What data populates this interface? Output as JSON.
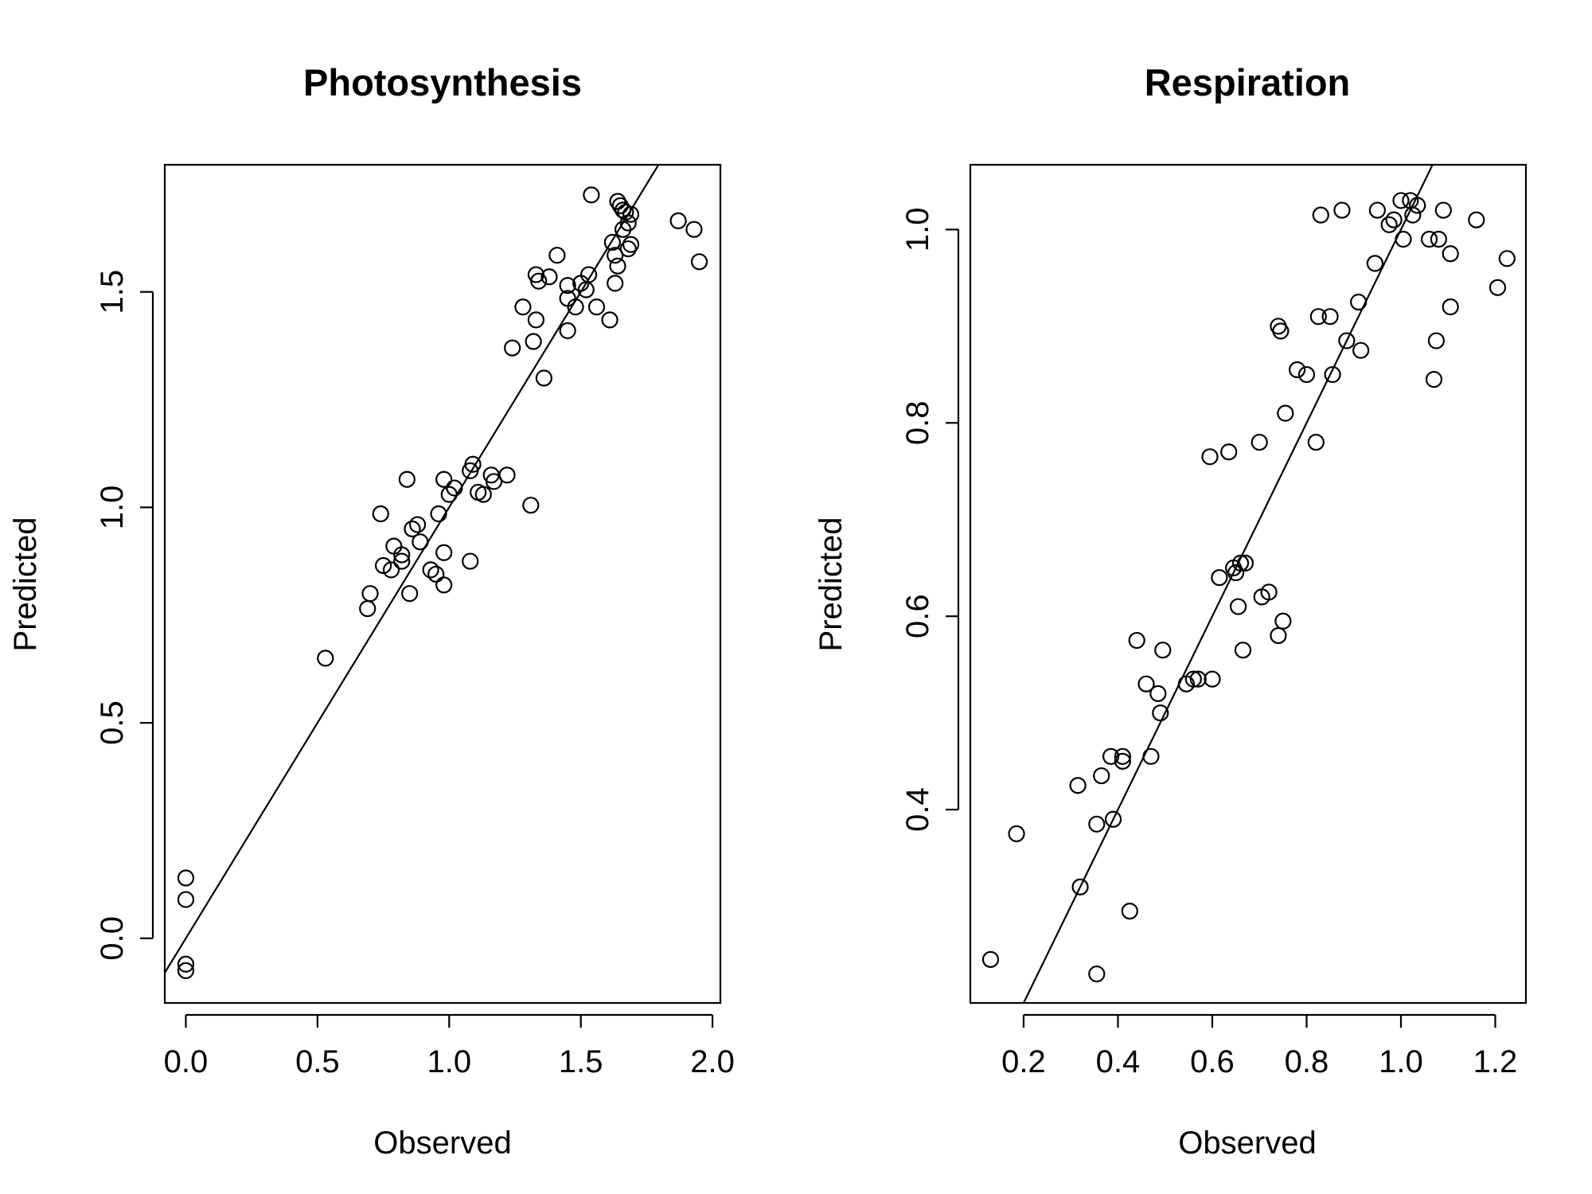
{
  "chart_data": [
    {
      "type": "scatter",
      "title": "Photosynthesis",
      "xlabel": "Observed",
      "ylabel": "Predicted",
      "xlim": [
        -0.08,
        2.03
      ],
      "ylim": [
        -0.15,
        1.795
      ],
      "x_ticks": [
        0,
        0.5,
        1,
        1.5,
        2
      ],
      "x_tick_labels": [
        "0.0",
        "0.5",
        "1.0",
        "1.5",
        "2.0"
      ],
      "y_ticks": [
        0,
        0.5,
        1,
        1.5
      ],
      "y_tick_labels": [
        "0.0",
        "0.5",
        "1.0",
        "1.5"
      ],
      "reference_line": {
        "intercept": 0.0,
        "slope": 1.0
      },
      "marker": "open-circle",
      "grid": false,
      "points": [
        [
          0.0,
          0.14
        ],
        [
          0.0,
          0.09
        ],
        [
          0.0,
          -0.06
        ],
        [
          0.0,
          -0.075
        ],
        [
          0.53,
          0.65
        ],
        [
          0.69,
          0.765
        ],
        [
          0.7,
          0.8
        ],
        [
          0.74,
          0.985
        ],
        [
          0.75,
          0.865
        ],
        [
          0.78,
          0.855
        ],
        [
          0.79,
          0.91
        ],
        [
          0.82,
          0.875
        ],
        [
          0.82,
          0.89
        ],
        [
          0.84,
          1.065
        ],
        [
          0.85,
          0.8
        ],
        [
          0.86,
          0.95
        ],
        [
          0.88,
          0.96
        ],
        [
          0.89,
          0.92
        ],
        [
          0.93,
          0.855
        ],
        [
          0.95,
          0.845
        ],
        [
          0.96,
          0.985
        ],
        [
          0.98,
          0.82
        ],
        [
          0.98,
          0.895
        ],
        [
          0.98,
          1.065
        ],
        [
          1.0,
          1.03
        ],
        [
          1.02,
          1.045
        ],
        [
          1.08,
          0.875
        ],
        [
          1.08,
          1.085
        ],
        [
          1.09,
          1.1
        ],
        [
          1.11,
          1.035
        ],
        [
          1.13,
          1.03
        ],
        [
          1.16,
          1.075
        ],
        [
          1.17,
          1.06
        ],
        [
          1.22,
          1.075
        ],
        [
          1.24,
          1.37
        ],
        [
          1.28,
          1.465
        ],
        [
          1.31,
          1.005
        ],
        [
          1.32,
          1.385
        ],
        [
          1.33,
          1.54
        ],
        [
          1.33,
          1.435
        ],
        [
          1.34,
          1.525
        ],
        [
          1.36,
          1.3
        ],
        [
          1.38,
          1.535
        ],
        [
          1.41,
          1.585
        ],
        [
          1.45,
          1.515
        ],
        [
          1.45,
          1.485
        ],
        [
          1.45,
          1.41
        ],
        [
          1.48,
          1.465
        ],
        [
          1.5,
          1.52
        ],
        [
          1.52,
          1.505
        ],
        [
          1.53,
          1.54
        ],
        [
          1.54,
          1.725
        ],
        [
          1.56,
          1.465
        ],
        [
          1.61,
          1.435
        ],
        [
          1.62,
          1.615
        ],
        [
          1.63,
          1.585
        ],
        [
          1.63,
          1.52
        ],
        [
          1.64,
          1.56
        ],
        [
          1.64,
          1.71
        ],
        [
          1.65,
          1.7
        ],
        [
          1.66,
          1.69
        ],
        [
          1.66,
          1.645
        ],
        [
          1.67,
          1.685
        ],
        [
          1.68,
          1.66
        ],
        [
          1.68,
          1.6
        ],
        [
          1.69,
          1.61
        ],
        [
          1.69,
          1.68
        ],
        [
          1.87,
          1.665
        ],
        [
          1.93,
          1.645
        ],
        [
          1.95,
          1.57
        ]
      ]
    },
    {
      "type": "scatter",
      "title": "Respiration",
      "xlabel": "Observed",
      "ylabel": "Predicted",
      "xlim": [
        0.087,
        1.265
      ],
      "ylim": [
        0.2,
        1.067
      ],
      "x_ticks": [
        0.2,
        0.4,
        0.6,
        0.8,
        1.0,
        1.2
      ],
      "x_tick_labels": [
        "0.2",
        "0.4",
        "0.6",
        "0.8",
        "1.0",
        "1.2"
      ],
      "y_ticks": [
        0.4,
        0.6,
        0.8,
        1.0
      ],
      "y_tick_labels": [
        "0.4",
        "0.6",
        "0.8",
        "1.0"
      ],
      "reference_line": {
        "intercept": 0.0,
        "slope": 1.0
      },
      "marker": "open-circle",
      "grid": false,
      "points": [
        [
          0.13,
          0.245
        ],
        [
          0.185,
          0.375
        ],
        [
          0.315,
          0.425
        ],
        [
          0.32,
          0.32
        ],
        [
          0.355,
          0.385
        ],
        [
          0.355,
          0.23
        ],
        [
          0.365,
          0.435
        ],
        [
          0.385,
          0.455
        ],
        [
          0.39,
          0.39
        ],
        [
          0.41,
          0.455
        ],
        [
          0.41,
          0.45
        ],
        [
          0.425,
          0.295
        ],
        [
          0.44,
          0.575
        ],
        [
          0.46,
          0.53
        ],
        [
          0.47,
          0.455
        ],
        [
          0.485,
          0.52
        ],
        [
          0.49,
          0.5
        ],
        [
          0.495,
          0.565
        ],
        [
          0.545,
          0.53
        ],
        [
          0.56,
          0.535
        ],
        [
          0.57,
          0.535
        ],
        [
          0.595,
          0.765
        ],
        [
          0.6,
          0.535
        ],
        [
          0.615,
          0.64
        ],
        [
          0.635,
          0.77
        ],
        [
          0.645,
          0.65
        ],
        [
          0.65,
          0.645
        ],
        [
          0.655,
          0.61
        ],
        [
          0.66,
          0.655
        ],
        [
          0.665,
          0.565
        ],
        [
          0.67,
          0.655
        ],
        [
          0.7,
          0.78
        ],
        [
          0.705,
          0.62
        ],
        [
          0.72,
          0.625
        ],
        [
          0.74,
          0.9
        ],
        [
          0.74,
          0.58
        ],
        [
          0.745,
          0.895
        ],
        [
          0.75,
          0.595
        ],
        [
          0.755,
          0.81
        ],
        [
          0.78,
          0.855
        ],
        [
          0.8,
          0.85
        ],
        [
          0.82,
          0.78
        ],
        [
          0.825,
          0.91
        ],
        [
          0.83,
          1.015
        ],
        [
          0.85,
          0.91
        ],
        [
          0.855,
          0.85
        ],
        [
          0.875,
          1.02
        ],
        [
          0.885,
          0.885
        ],
        [
          0.91,
          0.925
        ],
        [
          0.915,
          0.875
        ],
        [
          0.945,
          0.965
        ],
        [
          0.95,
          1.02
        ],
        [
          0.975,
          1.005
        ],
        [
          0.985,
          1.01
        ],
        [
          1.0,
          1.03
        ],
        [
          1.005,
          0.99
        ],
        [
          1.02,
          1.03
        ],
        [
          1.025,
          1.015
        ],
        [
          1.035,
          1.025
        ],
        [
          1.06,
          0.99
        ],
        [
          1.07,
          0.845
        ],
        [
          1.075,
          0.885
        ],
        [
          1.08,
          0.99
        ],
        [
          1.09,
          1.02
        ],
        [
          1.105,
          0.92
        ],
        [
          1.105,
          0.975
        ],
        [
          1.16,
          1.01
        ],
        [
          1.205,
          0.94
        ],
        [
          1.225,
          0.97
        ]
      ]
    }
  ]
}
